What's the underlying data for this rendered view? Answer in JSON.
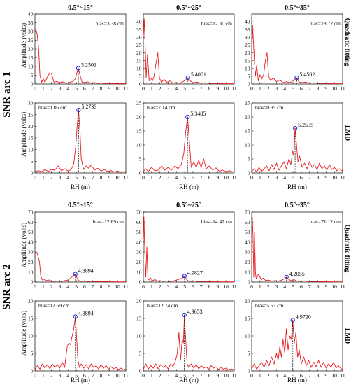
{
  "figure": {
    "arc_labels": [
      "SNR arc 1",
      "SNR arc 2"
    ],
    "method_labels": [
      "Quadratic fitting",
      "LMD"
    ],
    "column_titles": [
      "0.5°~15°",
      "0.5°~25°",
      "0.5°~35°"
    ],
    "y_label": "Amplitude (volts)",
    "x_label": "RH (m)",
    "line_color": "#e8191c",
    "marker_color": "#1f2bd6"
  },
  "chart_data": [
    {
      "type": "line",
      "arc": "SNR arc 1",
      "method": "Quadratic fitting",
      "range": "0.5°~15°",
      "bias": "bias=3.38 cm",
      "peak_rh": 5.2501,
      "peak_amp": 9,
      "peak_label": "5.2501",
      "ylim": [
        0,
        40
      ],
      "yticks": [
        0,
        5,
        10,
        15,
        20,
        25,
        30,
        35,
        40
      ],
      "xlim": [
        0,
        11
      ],
      "x": [
        0,
        0.1,
        0.25,
        0.45,
        0.6,
        0.8,
        1.0,
        1.2,
        1.5,
        1.8,
        2.0,
        2.3,
        2.6,
        3.0,
        3.4,
        3.8,
        4.2,
        4.6,
        4.9,
        5.05,
        5.25,
        5.45,
        5.7,
        6.0,
        6.4,
        6.8,
        7.2,
        7.6,
        8.0,
        8.5,
        9.0,
        9.5,
        10.0,
        10.5,
        11.0
      ],
      "y": [
        30,
        31,
        29,
        20,
        5,
        1,
        3,
        1,
        4,
        6.5,
        6,
        1,
        1.5,
        0.8,
        1.2,
        0.5,
        1,
        1.5,
        3,
        6,
        9,
        5,
        1,
        0.8,
        1.2,
        0.5,
        0.8,
        0.4,
        0.6,
        0.3,
        0.4,
        0.2,
        0.3,
        0.2,
        0.2
      ]
    },
    {
      "type": "line",
      "arc": "SNR arc 1",
      "method": "Quadratic fitting",
      "range": "0.5°~25°",
      "bias": "bias=12.30 cm",
      "peak_rh": 5.4001,
      "peak_amp": 4,
      "peak_label": "5.4001",
      "ylim": [
        0,
        45
      ],
      "yticks": [
        0,
        5,
        10,
        15,
        20,
        25,
        30,
        35,
        40
      ],
      "xlim": [
        0,
        11
      ],
      "x": [
        0,
        0.1,
        0.2,
        0.35,
        0.5,
        0.7,
        0.9,
        1.1,
        1.3,
        1.55,
        1.75,
        1.95,
        2.2,
        2.5,
        2.8,
        3.2,
        3.6,
        4.0,
        4.4,
        4.8,
        5.1,
        5.4,
        5.7,
        6.0,
        6.5,
        7.0,
        7.5,
        8.0,
        8.5,
        9.0,
        9.5,
        10.0,
        10.5,
        11.0
      ],
      "y": [
        30,
        42,
        28,
        4,
        19,
        2,
        4,
        2,
        5,
        14,
        20,
        4,
        1,
        3,
        1,
        2,
        0.5,
        1,
        0.5,
        1.5,
        2.5,
        4,
        2,
        0.8,
        1.2,
        0.5,
        0.8,
        0.4,
        0.5,
        0.3,
        0.3,
        0.2,
        0.2,
        0.2
      ]
    },
    {
      "type": "line",
      "arc": "SNR arc 1",
      "method": "Quadratic fitting",
      "range": "0.5°~35°",
      "bias": "bias=18.72 cm",
      "peak_rh": 5.4502,
      "peak_amp": 4,
      "peak_label": "5.4502",
      "ylim": [
        0,
        45
      ],
      "yticks": [
        0,
        5,
        10,
        15,
        20,
        25,
        30,
        35,
        40
      ],
      "xlim": [
        0,
        11
      ],
      "x": [
        0,
        0.1,
        0.2,
        0.3,
        0.45,
        0.6,
        0.8,
        1.0,
        1.2,
        1.45,
        1.65,
        1.85,
        2.05,
        2.3,
        2.6,
        3.0,
        3.4,
        3.8,
        4.2,
        4.6,
        5.0,
        5.25,
        5.45,
        5.7,
        6.0,
        6.5,
        7.0,
        7.5,
        8.0,
        8.5,
        9.0,
        9.5,
        10.0,
        10.5,
        11.0
      ],
      "y": [
        15,
        38,
        28,
        18,
        5,
        12,
        2,
        6,
        3,
        6,
        15,
        20,
        5,
        2,
        4,
        1.5,
        2.5,
        0.8,
        1.5,
        0.8,
        2,
        3.2,
        4,
        1.5,
        0.8,
        1.2,
        0.5,
        0.8,
        0.4,
        0.5,
        0.3,
        0.3,
        0.2,
        0.2,
        0.2
      ]
    },
    {
      "type": "line",
      "arc": "SNR arc 1",
      "method": "LMD",
      "range": "0.5°~15°",
      "bias": "bias=1.05 cm",
      "peak_rh": 5.2733,
      "peak_amp": 27,
      "peak_label": "5.2733",
      "ylim": [
        0,
        30
      ],
      "yticks": [
        0,
        5,
        10,
        15,
        20,
        25,
        30
      ],
      "xlim": [
        0,
        11
      ],
      "x": [
        0,
        0.4,
        0.8,
        1.2,
        1.6,
        2.0,
        2.4,
        2.8,
        3.2,
        3.6,
        4.0,
        4.4,
        4.7,
        4.95,
        5.1,
        5.27,
        5.45,
        5.6,
        5.9,
        6.2,
        6.5,
        6.8,
        7.2,
        7.6,
        8.0,
        8.4,
        8.8,
        9.2,
        9.6,
        10.0,
        10.4,
        10.8,
        11.0
      ],
      "y": [
        0.5,
        1,
        0.5,
        1.5,
        0.6,
        1.5,
        1.2,
        3,
        1,
        1.8,
        0.8,
        1.5,
        4,
        12,
        20,
        27,
        18,
        6,
        1.5,
        3,
        2,
        3.5,
        1.2,
        2,
        0.8,
        1.5,
        0.6,
        1,
        0.4,
        0.8,
        0.3,
        0.6,
        0.3
      ]
    },
    {
      "type": "line",
      "arc": "SNR arc 1",
      "method": "LMD",
      "range": "0.5°~25°",
      "bias": "bias=7.14 cm",
      "peak_rh": 5.3485,
      "peak_amp": 20,
      "peak_label": "5.3485",
      "ylim": [
        0,
        25
      ],
      "yticks": [
        0,
        5,
        10,
        15,
        20,
        25
      ],
      "xlim": [
        0,
        11
      ],
      "x": [
        0,
        0.3,
        0.6,
        1.0,
        1.4,
        1.8,
        2.2,
        2.6,
        3.0,
        3.4,
        3.8,
        4.2,
        4.6,
        4.9,
        5.1,
        5.35,
        5.55,
        5.8,
        6.1,
        6.4,
        6.7,
        7.0,
        7.3,
        7.6,
        8.0,
        8.4,
        8.8,
        9.2,
        9.6,
        10.0,
        10.4,
        10.8,
        11.0
      ],
      "y": [
        0.5,
        1.5,
        0.5,
        2,
        0.8,
        1,
        2.5,
        1,
        2,
        1,
        2.5,
        1.5,
        3,
        7,
        14,
        20,
        12,
        2,
        4,
        2,
        4.5,
        2,
        5,
        1.5,
        2.5,
        1,
        1.8,
        0.6,
        1,
        0.5,
        0.8,
        0.4,
        0.4
      ]
    },
    {
      "type": "line",
      "arc": "SNR arc 1",
      "method": "LMD",
      "range": "0.5°~35°",
      "bias": "bias=0.95 cm",
      "peak_rh": 5.2535,
      "peak_amp": 16,
      "peak_label": "5.2535",
      "ylim": [
        0,
        25
      ],
      "yticks": [
        0,
        5,
        10,
        15,
        20,
        25
      ],
      "xlim": [
        0,
        11
      ],
      "x": [
        0,
        0.3,
        0.6,
        0.9,
        1.2,
        1.5,
        1.8,
        2.1,
        2.4,
        2.7,
        3.0,
        3.3,
        3.6,
        3.9,
        4.2,
        4.5,
        4.75,
        4.95,
        5.1,
        5.25,
        5.4,
        5.6,
        5.8,
        6.1,
        6.4,
        6.7,
        7.0,
        7.3,
        7.6,
        7.9,
        8.2,
        8.5,
        8.8,
        9.1,
        9.4,
        9.7,
        10.0,
        10.3,
        10.6,
        11.0
      ],
      "y": [
        0.5,
        1.5,
        0.3,
        2,
        0.5,
        1.5,
        2.5,
        0.8,
        3,
        1.2,
        3.5,
        1,
        2.5,
        4,
        1.5,
        5,
        3,
        8,
        6,
        16,
        11,
        4,
        6,
        2,
        3.5,
        1.5,
        4,
        2,
        3,
        1.2,
        3.5,
        1.5,
        2.5,
        1,
        3,
        1.2,
        2,
        0.8,
        1.5,
        0.6
      ]
    },
    {
      "type": "line",
      "arc": "SNR arc 2",
      "method": "Quadratic fitting",
      "range": "0.5°~15°",
      "bias": "bias=12.69 cm",
      "peak_rh": 4.8894,
      "peak_amp": 8,
      "peak_label": "4.8894",
      "ylim": [
        0,
        70
      ],
      "yticks": [
        0,
        10,
        20,
        30,
        40,
        50,
        60,
        70
      ],
      "xlim": [
        0,
        11
      ],
      "x": [
        0,
        0.1,
        0.25,
        0.4,
        0.55,
        0.7,
        0.9,
        1.1,
        1.4,
        1.7,
        2.0,
        2.4,
        2.8,
        3.2,
        3.6,
        4.0,
        4.3,
        4.6,
        4.89,
        5.15,
        5.4,
        5.7,
        6.0,
        6.4,
        6.8,
        7.2,
        7.6,
        8.0,
        8.5,
        9.0,
        9.5,
        10.0,
        10.5,
        11.0
      ],
      "y": [
        28,
        30,
        29,
        25,
        20,
        6,
        2,
        3,
        1.5,
        2,
        1,
        0.8,
        1.2,
        0.6,
        1.5,
        2,
        4,
        6,
        8,
        3,
        1,
        0.8,
        1.2,
        0.5,
        0.9,
        0.4,
        0.6,
        0.3,
        0.5,
        0.3,
        0.3,
        0.2,
        0.2,
        0.2
      ]
    },
    {
      "type": "line",
      "arc": "SNR arc 2",
      "method": "Quadratic fitting",
      "range": "0.5°~25°",
      "bias": "bias=14.47 cm",
      "peak_rh": 4.9827,
      "peak_amp": 6,
      "peak_label": "4.9827",
      "ylim": [
        0,
        70
      ],
      "yticks": [
        0,
        10,
        20,
        30,
        40,
        50,
        60,
        70
      ],
      "xlim": [
        0,
        11
      ],
      "x": [
        0,
        0.08,
        0.18,
        0.3,
        0.42,
        0.55,
        0.7,
        0.9,
        1.1,
        1.4,
        1.7,
        2.0,
        2.4,
        2.8,
        3.2,
        3.6,
        4.0,
        4.4,
        4.7,
        4.98,
        5.25,
        5.5,
        5.8,
        6.2,
        6.6,
        7.0,
        7.5,
        8.0,
        8.5,
        9.0,
        9.5,
        10.0,
        10.5,
        11.0
      ],
      "y": [
        40,
        65,
        30,
        5,
        35,
        4,
        2,
        4,
        1.5,
        2.5,
        1,
        1.5,
        0.8,
        1.2,
        0.6,
        1,
        2,
        3,
        4,
        6,
        2.5,
        1,
        0.8,
        1.2,
        0.5,
        0.8,
        0.4,
        0.6,
        0.3,
        0.4,
        0.2,
        0.3,
        0.2,
        0.2
      ]
    },
    {
      "type": "line",
      "arc": "SNR arc 2",
      "method": "Quadratic fitting",
      "range": "0.5°~35°",
      "bias": "bias=71.12 cm",
      "peak_rh": 4.2055,
      "peak_amp": 5,
      "peak_label": "4.2055",
      "ylim": [
        0,
        70
      ],
      "yticks": [
        0,
        10,
        20,
        30,
        40,
        50,
        60,
        70
      ],
      "xlim": [
        0,
        11
      ],
      "x": [
        0,
        0.08,
        0.16,
        0.25,
        0.35,
        0.45,
        0.55,
        0.7,
        0.85,
        1.0,
        1.2,
        1.4,
        1.7,
        2.0,
        2.4,
        2.8,
        3.2,
        3.6,
        3.9,
        4.2,
        4.5,
        4.8,
        5.1,
        5.5,
        6.0,
        6.5,
        7.0,
        7.5,
        8.0,
        8.5,
        9.0,
        9.5,
        10.0,
        10.5,
        11.0
      ],
      "y": [
        20,
        65,
        45,
        5,
        50,
        10,
        3,
        6,
        8,
        5,
        2,
        4,
        1.5,
        2,
        1,
        1.5,
        1,
        1.8,
        3,
        5,
        2.5,
        1.5,
        2.5,
        1,
        0.8,
        1.2,
        0.5,
        0.8,
        0.4,
        0.5,
        0.3,
        0.3,
        0.2,
        0.2,
        0.2
      ]
    },
    {
      "type": "line",
      "arc": "SNR arc 2",
      "method": "LMD",
      "range": "0.5°~15°",
      "bias": "bias=12.69 cm",
      "peak_rh": 4.8894,
      "peak_amp": 15.5,
      "peak_label": "4.8894",
      "ylim": [
        0,
        20
      ],
      "yticks": [
        0,
        5,
        10,
        15,
        20
      ],
      "xlim": [
        0,
        11
      ],
      "x": [
        0,
        0.3,
        0.6,
        0.9,
        1.2,
        1.5,
        1.8,
        2.1,
        2.4,
        2.7,
        3.0,
        3.3,
        3.6,
        3.9,
        4.1,
        4.3,
        4.5,
        4.7,
        4.89,
        5.05,
        5.2,
        5.4,
        5.6,
        5.9,
        6.2,
        6.5,
        6.8,
        7.1,
        7.4,
        7.7,
        8.0,
        8.3,
        8.6,
        8.9,
        9.2,
        9.5,
        9.8,
        10.1,
        10.4,
        10.7,
        11.0
      ],
      "y": [
        0.5,
        1.5,
        0.5,
        2,
        0.8,
        1.8,
        0.6,
        2,
        1,
        1.8,
        0.8,
        2.5,
        1,
        7,
        8,
        7.5,
        10,
        12,
        15.5,
        9,
        3,
        1,
        2,
        0.8,
        1.8,
        0.6,
        2,
        1,
        1.5,
        0.5,
        1.8,
        0.8,
        1.5,
        0.5,
        1.2,
        0.6,
        1,
        0.4,
        0.8,
        0.3,
        0.5
      ]
    },
    {
      "type": "line",
      "arc": "SNR arc 2",
      "method": "LMD",
      "range": "0.5°~25°",
      "bias": "bias=12.74 cm",
      "peak_rh": 4.9653,
      "peak_amp": 16,
      "peak_label": "4.9653",
      "ylim": [
        0,
        20
      ],
      "yticks": [
        0,
        5,
        10,
        15,
        20
      ],
      "xlim": [
        0,
        11
      ],
      "x": [
        0,
        0.3,
        0.6,
        0.9,
        1.2,
        1.5,
        1.8,
        2.1,
        2.4,
        2.7,
        3.0,
        3.3,
        3.6,
        3.9,
        4.1,
        4.3,
        4.5,
        4.7,
        4.85,
        4.97,
        5.1,
        5.3,
        5.5,
        5.8,
        6.1,
        6.4,
        6.7,
        7.0,
        7.3,
        7.6,
        7.9,
        8.2,
        8.5,
        8.8,
        9.1,
        9.4,
        9.7,
        10.0,
        10.3,
        10.6,
        11.0
      ],
      "y": [
        0.5,
        2,
        0.5,
        1.5,
        0.8,
        2,
        0.6,
        1.8,
        1,
        1.5,
        0.6,
        2,
        1.2,
        3,
        5,
        11,
        3,
        9,
        8,
        16,
        10,
        2,
        1,
        2,
        0.8,
        1.8,
        0.6,
        1.5,
        0.8,
        1.2,
        0.5,
        1.5,
        0.8,
        1.2,
        0.4,
        1,
        0.5,
        0.8,
        0.3,
        0.6,
        0.3
      ]
    },
    {
      "type": "line",
      "arc": "SNR arc 2",
      "method": "LMD",
      "range": "0.5°~35°",
      "bias": "bias=5.53 cm",
      "peak_rh": 4.972,
      "peak_amp": 14.5,
      "peak_label": "4.9720",
      "ylim": [
        0,
        20
      ],
      "yticks": [
        0,
        5,
        10,
        15,
        20
      ],
      "xlim": [
        0,
        11
      ],
      "x": [
        0,
        0.3,
        0.6,
        0.9,
        1.2,
        1.5,
        1.8,
        2.1,
        2.4,
        2.7,
        3.0,
        3.2,
        3.4,
        3.6,
        3.8,
        4.0,
        4.2,
        4.4,
        4.6,
        4.8,
        4.97,
        5.15,
        5.35,
        5.55,
        5.75,
        6.0,
        6.3,
        6.6,
        6.9,
        7.2,
        7.5,
        7.8,
        8.1,
        8.4,
        8.7,
        9.0,
        9.3,
        9.6,
        9.9,
        10.2,
        10.5,
        10.8,
        11.0
      ],
      "y": [
        0.5,
        2,
        0.5,
        1.5,
        2.5,
        1,
        3,
        1.5,
        4,
        2,
        5,
        3,
        7,
        4,
        9,
        5,
        12,
        6,
        10,
        9,
        14.5,
        8,
        11,
        4,
        6,
        2,
        4,
        1.5,
        3,
        1,
        2.5,
        1.2,
        3,
        1,
        2.5,
        0.8,
        2,
        1,
        2.5,
        0.8,
        1.5,
        0.6,
        0.5
      ]
    }
  ]
}
